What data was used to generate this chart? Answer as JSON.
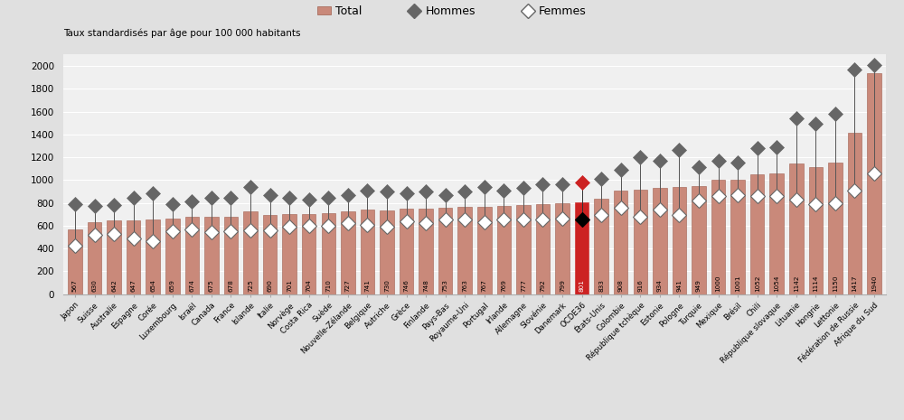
{
  "categories": [
    "Japon",
    "Suisse",
    "Australie",
    "Espagne",
    "Corée",
    "Luxembourg",
    "Israël",
    "Canada",
    "France",
    "Islande",
    "Italie",
    "Norvège",
    "Costa Rica",
    "Suède",
    "Nouvelle-Zélande",
    "Belgique",
    "Autriche",
    "Grèce",
    "Finlande",
    "Pays-Bas",
    "Royaume-Uni",
    "Portugal",
    "Irlande",
    "Allemagne",
    "Slovénie",
    "Danemark",
    "OCDE36",
    "États-Unis",
    "Colombie",
    "République tchèque",
    "Estonie",
    "Pologne",
    "Turquie",
    "Mexique",
    "Brésil",
    "Chili",
    "République slovaque",
    "Lituanie",
    "Hongrie",
    "Lettonie",
    "Fédération de Russie",
    "Afrique du Sud"
  ],
  "total": [
    567,
    630,
    642,
    647,
    654,
    659,
    674,
    675,
    678,
    725,
    690,
    701,
    704,
    710,
    727,
    741,
    730,
    746,
    748,
    753,
    763,
    767,
    769,
    777,
    792,
    799,
    801,
    833,
    908,
    916,
    934,
    941,
    949,
    1000,
    1001,
    1052,
    1054,
    1142,
    1114,
    1150,
    1417,
    1940
  ],
  "hommes": [
    790,
    770,
    780,
    840,
    880,
    790,
    810,
    840,
    840,
    940,
    870,
    840,
    830,
    840,
    870,
    910,
    900,
    880,
    900,
    870,
    900,
    940,
    910,
    930,
    960,
    960,
    980,
    1010,
    1090,
    1200,
    1170,
    1260,
    1110,
    1170,
    1150,
    1280,
    1290,
    1540,
    1490,
    1580,
    1970,
    2010
  ],
  "femmes": [
    420,
    520,
    530,
    490,
    460,
    550,
    570,
    540,
    550,
    560,
    560,
    590,
    600,
    600,
    620,
    610,
    590,
    640,
    620,
    650,
    650,
    630,
    650,
    650,
    650,
    660,
    650,
    690,
    760,
    680,
    740,
    690,
    820,
    860,
    870,
    860,
    860,
    830,
    790,
    800,
    910,
    1060
  ],
  "highlight_index": 26,
  "bar_color_normal": "#c9897a",
  "bar_color_highlight": "#cc2222",
  "bar_color_normal_edge": "#a06050",
  "hommes_color": "#666666",
  "hommes_highlight_color": "#cc2222",
  "femmes_fill": "#ffffff",
  "femmes_edge_color": "#666666",
  "line_color": "#333333",
  "ylabel": "Taux standardisés par âge pour 100 000 habitants",
  "ylim": [
    0,
    2100
  ],
  "yticks": [
    0,
    200,
    400,
    600,
    800,
    1000,
    1200,
    1400,
    1600,
    1800,
    2000
  ],
  "legend_total": "Total",
  "legend_hommes": "Hommes",
  "legend_femmes": "Femmes",
  "background_color": "#e0e0e0",
  "plot_background": "#f0f0f0"
}
